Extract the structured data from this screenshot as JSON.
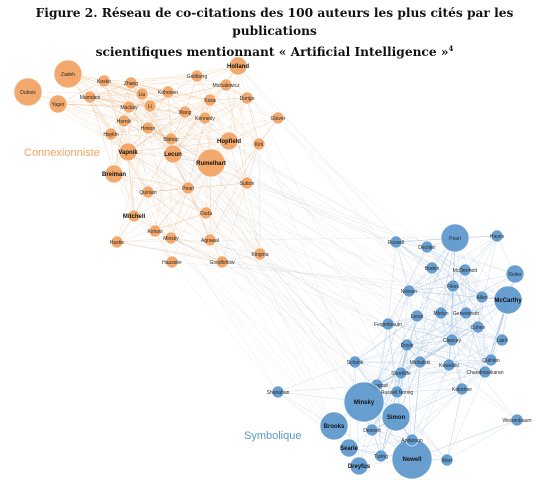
{
  "figure": {
    "title_line1": "Figure 2. Réseau de co-citations des 100 auteurs les plus cités par les publications",
    "title_line2": "scientifiques mentionnant « Artificial Intelligence »",
    "footnote_ref": "4"
  },
  "colors": {
    "connexionniste": "#f2a262",
    "symbolique": "#5b97cc",
    "edge_orange": "#f4c9a0",
    "edge_blue": "#a9c7e6",
    "edge_mixed": "#c9c4c4"
  },
  "clusters": {
    "connexionniste": {
      "label": "Connexionniste"
    },
    "symbolique": {
      "label": "Symbolique"
    }
  },
  "nodes": {
    "connexionniste": [
      {
        "label": "Zadeh",
        "size": "l"
      },
      {
        "label": "Dubois",
        "size": "l"
      },
      {
        "label": "Yager",
        "size": "m"
      },
      {
        "label": "Mamdani",
        "size": "s"
      },
      {
        "label": "Kosko",
        "size": "s"
      },
      {
        "label": "Zhang",
        "size": "s"
      },
      {
        "label": "Goldberg",
        "size": "s"
      },
      {
        "label": "Holland",
        "size": "m",
        "bold": true
      },
      {
        "label": "Kohonen",
        "size": "s"
      },
      {
        "label": "Koza",
        "size": "s"
      },
      {
        "label": "Michalewicz",
        "size": "s"
      },
      {
        "label": "Wang",
        "size": "s"
      },
      {
        "label": "Li",
        "size": "s"
      },
      {
        "label": "Liu",
        "size": "s"
      },
      {
        "label": "Mackay",
        "size": "s"
      },
      {
        "label": "Hornik",
        "size": "s"
      },
      {
        "label": "Hinton",
        "size": "s"
      },
      {
        "label": "Kennedy",
        "size": "s"
      },
      {
        "label": "Dorigo",
        "size": "s"
      },
      {
        "label": "Vapnik",
        "size": "m",
        "bold": true
      },
      {
        "label": "Lecun",
        "size": "m",
        "bold": true
      },
      {
        "label": "Rumelhart",
        "size": "l",
        "bold": true
      },
      {
        "label": "Hopfield",
        "size": "m",
        "bold": true
      },
      {
        "label": "Haykin",
        "size": "s"
      },
      {
        "label": "Bishop",
        "size": "s"
      },
      {
        "label": "Breiman",
        "size": "m",
        "bold": true
      },
      {
        "label": "Mitchell",
        "size": "s",
        "bold": true
      },
      {
        "label": "Quinlan",
        "size": "s"
      },
      {
        "label": "Pearl",
        "size": "s"
      },
      {
        "label": "Duda",
        "size": "s"
      },
      {
        "label": "Kirk",
        "size": "s"
      },
      {
        "label": "Sutton",
        "size": "s"
      },
      {
        "label": "Glover",
        "size": "s"
      },
      {
        "label": "Kohavi",
        "size": "s"
      },
      {
        "label": "Hastie",
        "size": "s"
      },
      {
        "label": "Minsky",
        "size": "s"
      },
      {
        "label": "Agrawal",
        "size": "s"
      },
      {
        "label": "Kingma",
        "size": "s"
      },
      {
        "label": "Goodfellow",
        "size": "s"
      },
      {
        "label": "Haussler",
        "size": "s"
      }
    ],
    "symbolique": [
      {
        "label": "Pearl",
        "size": "l"
      },
      {
        "label": "Russell",
        "size": "s"
      },
      {
        "label": "Dechter",
        "size": "s"
      },
      {
        "label": "McDermott",
        "size": "s"
      },
      {
        "label": "Reiter",
        "size": "m"
      },
      {
        "label": "McCarthy",
        "size": "l",
        "bold": true
      },
      {
        "label": "Nilsson",
        "size": "s"
      },
      {
        "label": "Fikes",
        "size": "s"
      },
      {
        "label": "Allen",
        "size": "s"
      },
      {
        "label": "Lenat",
        "size": "s"
      },
      {
        "label": "Minton",
        "size": "s"
      },
      {
        "label": "Genesereth",
        "size": "s"
      },
      {
        "label": "Feigenbaum",
        "size": "s"
      },
      {
        "label": "Clancey",
        "size": "s"
      },
      {
        "label": "Cohen",
        "size": "s"
      },
      {
        "label": "Doyle",
        "size": "s"
      },
      {
        "label": "Schank",
        "size": "s"
      },
      {
        "label": "Michalski",
        "size": "s"
      },
      {
        "label": "Kowalski",
        "size": "s"
      },
      {
        "label": "Chandrasekaran",
        "size": "s"
      },
      {
        "label": "Winograd",
        "size": "s"
      },
      {
        "label": "Shortliffe",
        "size": "s"
      },
      {
        "label": "Kolodner",
        "size": "s"
      },
      {
        "label": "Quinlan",
        "size": "s"
      },
      {
        "label": "Shanahan",
        "size": "s"
      },
      {
        "label": "Minsky",
        "size": "xl",
        "bold": true
      },
      {
        "label": "Brooks",
        "size": "l",
        "bold": true
      },
      {
        "label": "Simon",
        "size": "l",
        "bold": true
      },
      {
        "label": "Newell",
        "size": "xl",
        "bold": true
      },
      {
        "label": "Searle",
        "size": "m",
        "bold": true
      },
      {
        "label": "Dreyfus",
        "size": "m",
        "bold": true
      },
      {
        "label": "Turing",
        "size": "s"
      },
      {
        "label": "Dennett",
        "size": "s"
      },
      {
        "label": "Anderson",
        "size": "s"
      },
      {
        "label": "Marr",
        "size": "s"
      },
      {
        "label": "Laird",
        "size": "s"
      },
      {
        "label": "Weizenbaum",
        "size": "s"
      },
      {
        "label": "Russell Norvig",
        "size": "s"
      },
      {
        "label": "Hayes",
        "size": "s"
      },
      {
        "label": "Boden",
        "size": "s"
      }
    ]
  }
}
